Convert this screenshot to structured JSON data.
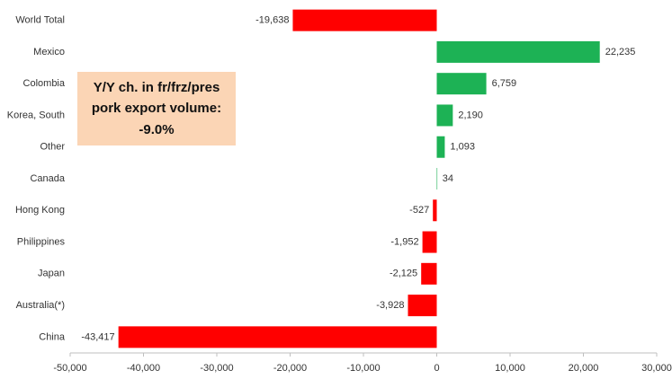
{
  "chart_data": {
    "type": "hbar",
    "categories": [
      "World Total",
      "Mexico",
      "Colombia",
      "Korea, South",
      "Other",
      "Canada",
      "Hong Kong",
      "Philippines",
      "Japan",
      "Australia(*)",
      "China"
    ],
    "values": [
      -19638,
      22235,
      6759,
      2190,
      1093,
      34,
      -527,
      -1952,
      -2125,
      -3928,
      -43417
    ],
    "value_labels": [
      "-19,638",
      "22,235",
      "6,759",
      "2,190",
      "1,093",
      "34",
      "-527",
      "-1,952",
      "-2,125",
      "-3,928",
      "-43,417"
    ],
    "colors": [
      "#ff0000",
      "#1db255",
      "#1db255",
      "#1db255",
      "#1db255",
      "#1db255",
      "#ff0000",
      "#ff0000",
      "#ff0000",
      "#ff0000",
      "#ff0000"
    ],
    "xlim": [
      -50000,
      30000
    ],
    "xticks": [
      {
        "value": -50000,
        "label": "-50,000"
      },
      {
        "value": -40000,
        "label": "-40,000"
      },
      {
        "value": -30000,
        "label": "-30,000"
      },
      {
        "value": -20000,
        "label": "-20,000"
      },
      {
        "value": -10000,
        "label": "-10,000"
      },
      0,
      {
        "value": 10000,
        "label": "10,000"
      },
      {
        "value": 20000,
        "label": "20,000"
      },
      {
        "value": 30000,
        "label": "30,000"
      }
    ],
    "annotation": [
      "Y/Y ch. in fr/frz/pres",
      "pork export volume:",
      "-9.0%"
    ]
  }
}
